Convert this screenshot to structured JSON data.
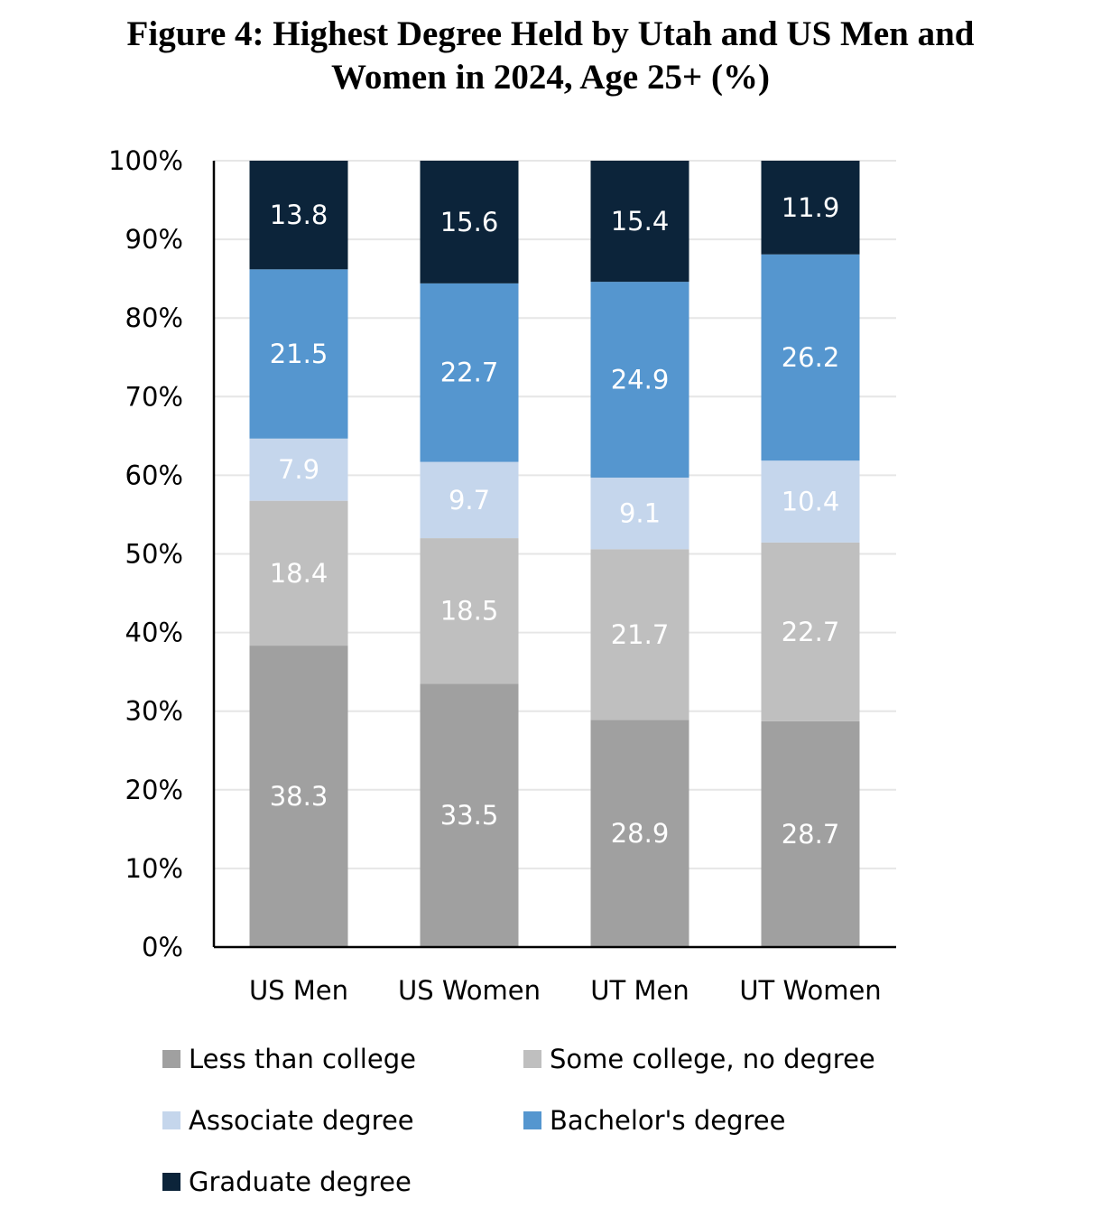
{
  "chart_data": {
    "type": "bar",
    "stacked": true,
    "percent_stacked": true,
    "title": "Figure 4: Highest Degree Held by Utah and US Men and\nWomen in 2024, Age 25+ (%)",
    "xlabel": "",
    "ylabel": "",
    "ylim": [
      0,
      100
    ],
    "y_ticks": [
      "0%",
      "10%",
      "20%",
      "30%",
      "40%",
      "50%",
      "60%",
      "70%",
      "80%",
      "90%",
      "100%"
    ],
    "grid": true,
    "legend_position": "bottom",
    "categories": [
      "US Men",
      "US Women",
      "UT Men",
      "UT Women"
    ],
    "series": [
      {
        "name": "Less than college",
        "color": "#a0a0a0",
        "values": [
          38.3,
          33.5,
          28.9,
          28.7
        ]
      },
      {
        "name": "Some college, no degree",
        "color": "#bfbfbf",
        "values": [
          18.4,
          18.5,
          21.7,
          22.7
        ]
      },
      {
        "name": "Associate degree",
        "color": "#c5d6ec",
        "values": [
          7.9,
          9.7,
          9.1,
          10.4
        ]
      },
      {
        "name": "Bachelor's degree",
        "color": "#5596cf",
        "values": [
          21.5,
          22.7,
          24.9,
          26.2
        ]
      },
      {
        "name": "Graduate degree",
        "color": "#0c243a",
        "values": [
          13.8,
          15.6,
          15.4,
          11.9
        ]
      }
    ]
  }
}
